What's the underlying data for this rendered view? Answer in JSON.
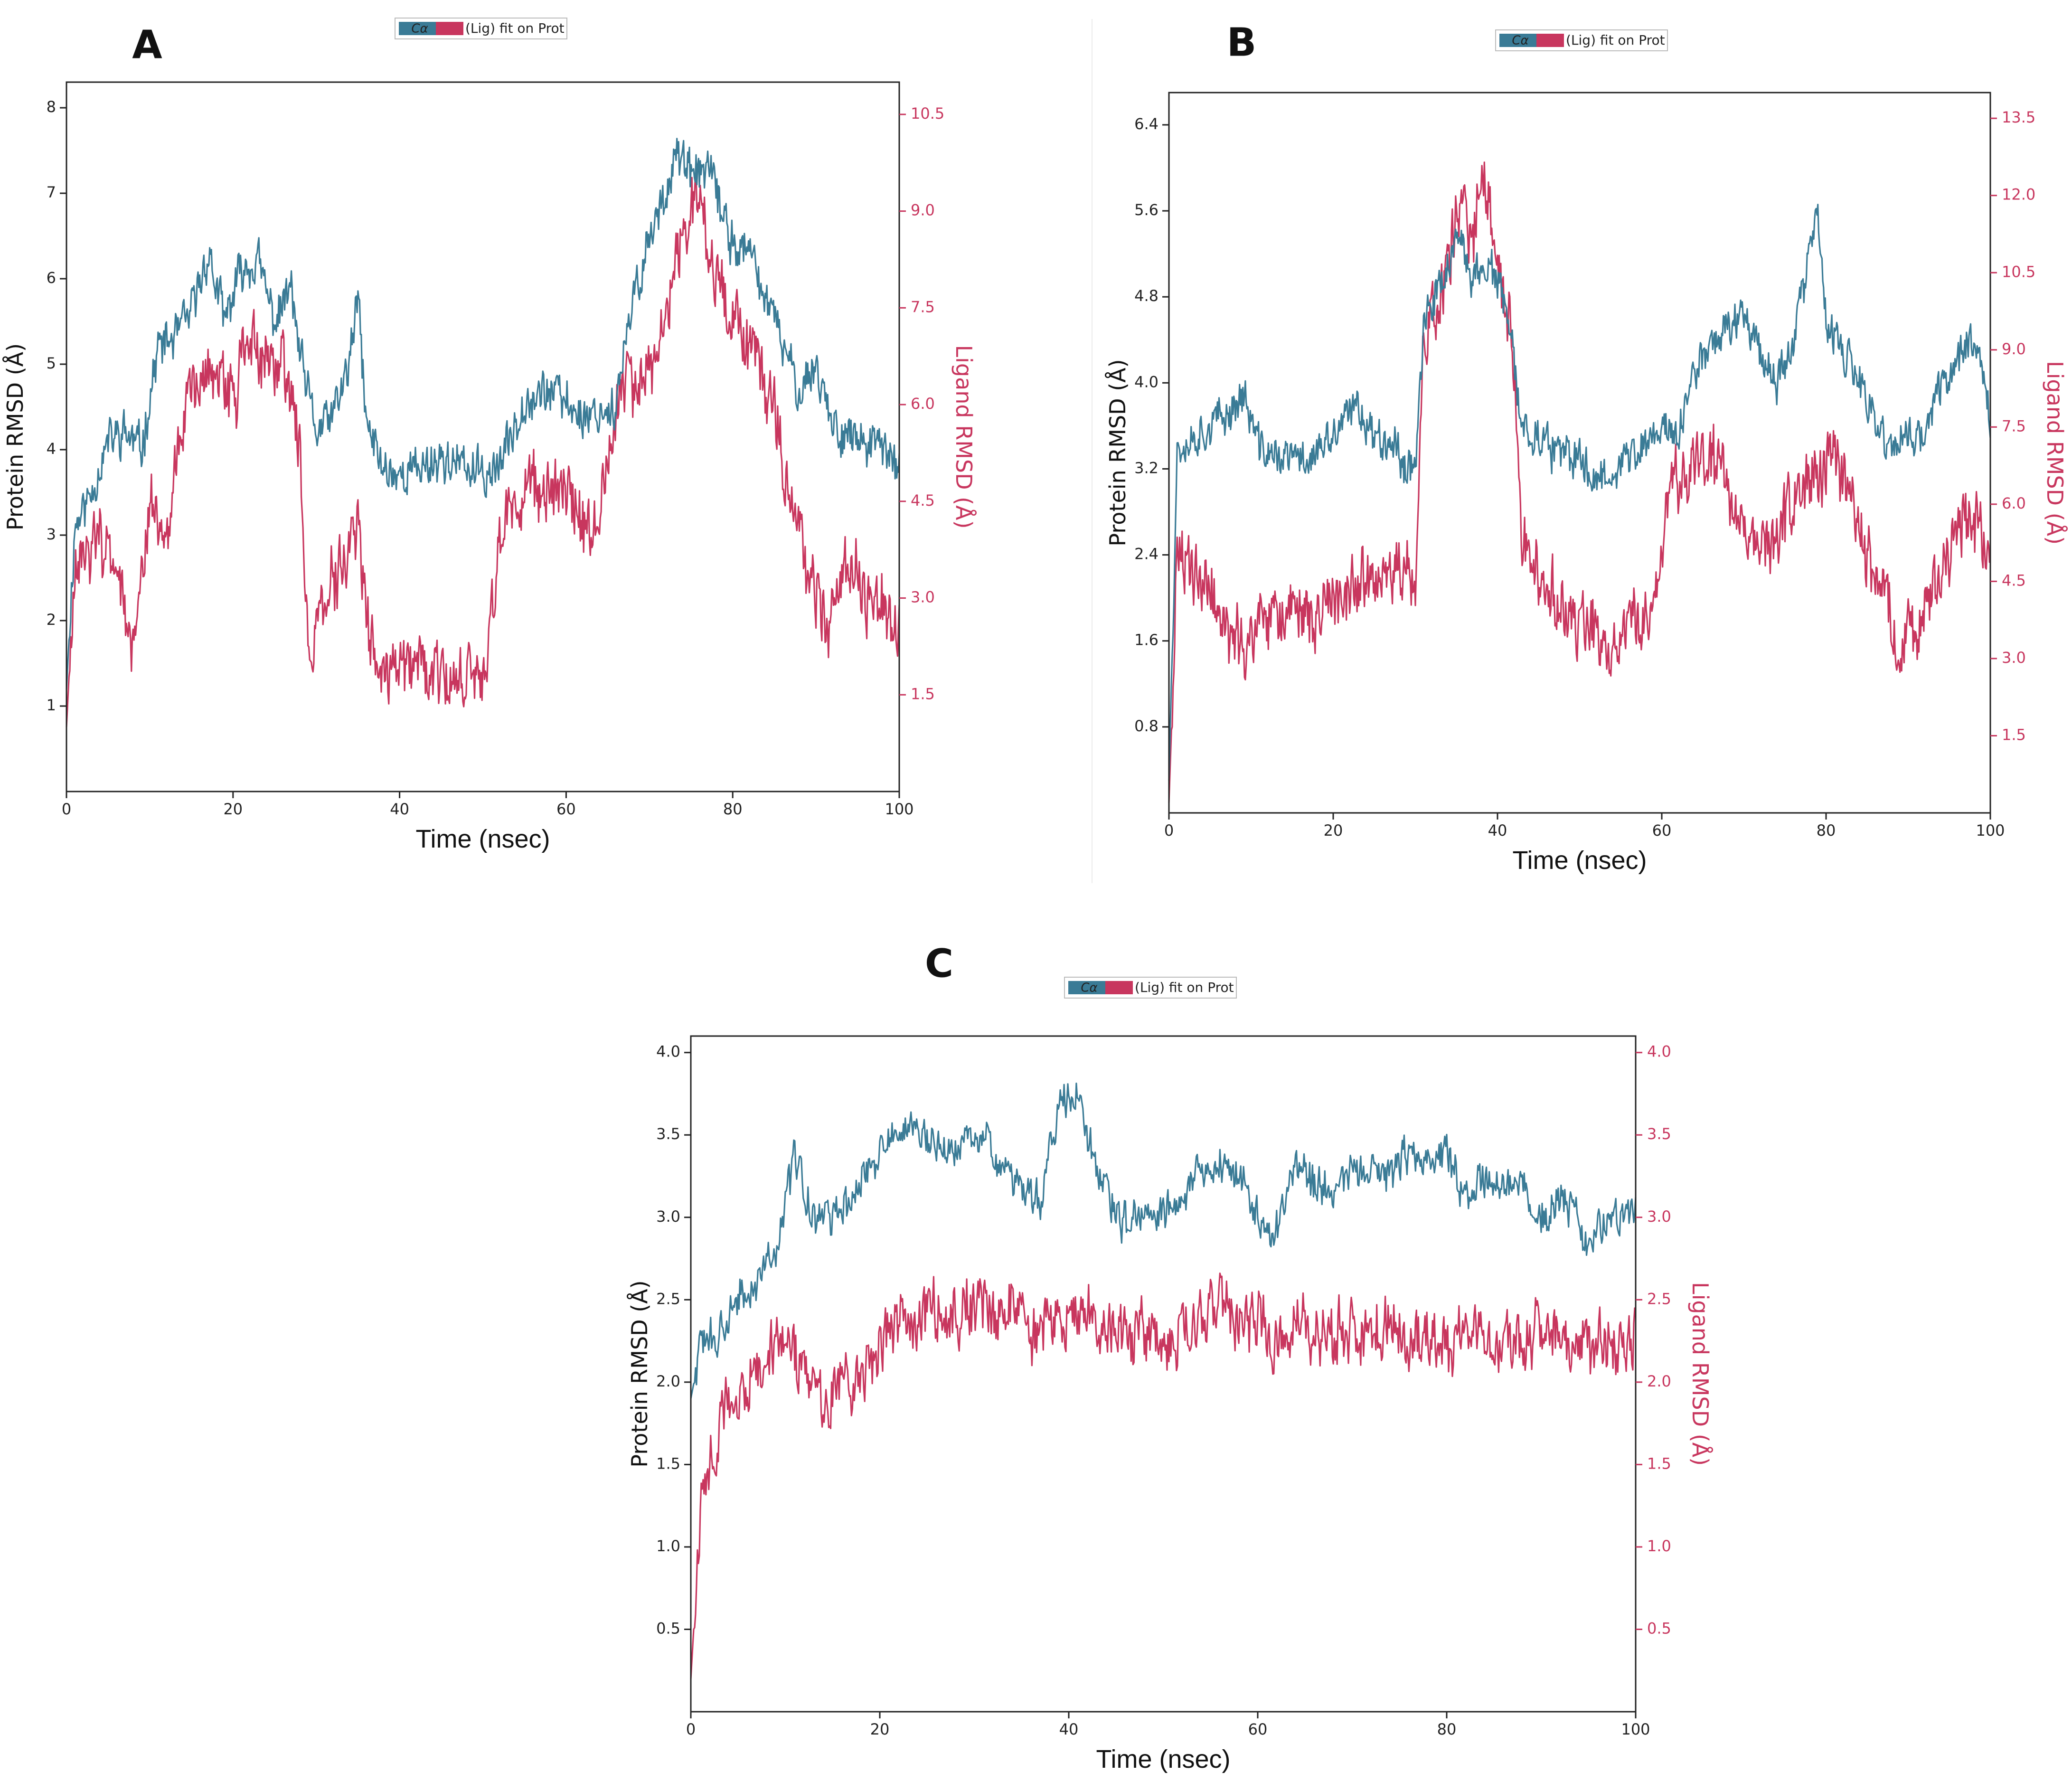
{
  "figure": {
    "background": "#ffffff",
    "protein_color": "#3a7b96",
    "ligand_color": "#c8365e"
  },
  "chart_data": [
    {
      "panel": "A",
      "type": "line",
      "legend": {
        "entries": [
          "Cα",
          "(Lig) fit on Prot"
        ],
        "text": "(Lig) fit on Prot",
        "ca_label": "Cα",
        "placement": "top-center"
      },
      "xlabel": "Time (nsec)",
      "ylabel": "Protein RMSD (Å)",
      "y2label": "Ligand RMSD (Å)",
      "xlim": [
        0,
        100
      ],
      "ylim": [
        0,
        8.3
      ],
      "y2lim": [
        0,
        11.0
      ],
      "xticks": [
        "0",
        "20",
        "40",
        "60",
        "80",
        "100"
      ],
      "yticks": [
        "1",
        "2",
        "3",
        "4",
        "5",
        "6",
        "7",
        "8"
      ],
      "y2ticks": [
        "1.5",
        "3.0",
        "4.5",
        "6.0",
        "7.5",
        "9.0",
        "10.5"
      ],
      "series": [
        {
          "name": "Protein RMSD",
          "axis": "left",
          "color": "#3a7b96",
          "x": [
            0,
            1,
            3,
            5,
            7,
            9,
            10,
            11,
            13,
            15,
            17,
            19,
            21,
            23,
            25,
            27,
            28,
            30,
            32,
            34,
            35,
            36,
            38,
            40,
            45,
            50,
            52,
            55,
            58,
            62,
            66,
            68,
            70,
            72,
            73,
            75,
            77,
            80,
            82,
            85,
            88,
            90,
            92,
            95,
            98,
            100
          ],
          "y": [
            1.2,
            3.1,
            3.5,
            4.1,
            4.2,
            4.0,
            4.6,
            5.2,
            5.3,
            5.6,
            6.3,
            5.5,
            6.1,
            6.2,
            5.5,
            5.9,
            5.1,
            4.2,
            4.4,
            5.0,
            5.8,
            4.3,
            3.8,
            3.7,
            3.9,
            3.7,
            3.8,
            4.6,
            4.7,
            4.4,
            4.5,
            5.7,
            6.5,
            7.0,
            7.5,
            7.2,
            7.3,
            6.4,
            6.3,
            5.5,
            4.7,
            5.0,
            4.3,
            4.1,
            4.0,
            3.8
          ]
        },
        {
          "name": "Ligand RMSD",
          "axis": "right",
          "color": "#c8365e",
          "x": [
            0,
            1,
            3,
            5,
            7,
            8,
            10,
            12,
            14,
            16,
            18,
            20,
            22,
            24,
            26,
            28,
            29,
            31,
            33,
            35,
            36,
            38,
            40,
            45,
            50,
            52,
            55,
            58,
            61,
            63,
            65,
            67,
            70,
            72,
            74,
            76,
            78,
            80,
            82,
            85,
            88,
            90,
            92,
            94,
            96,
            98,
            100
          ],
          "y": [
            1.0,
            3.6,
            3.7,
            3.9,
            3.0,
            2.3,
            4.5,
            4.1,
            5.9,
            6.3,
            6.8,
            6.0,
            7.0,
            6.5,
            6.6,
            5.5,
            2.0,
            3.2,
            3.4,
            4.0,
            2.7,
            1.6,
            1.9,
            1.8,
            1.6,
            4.0,
            4.6,
            4.7,
            4.5,
            3.9,
            5.3,
            6.3,
            6.4,
            7.5,
            8.6,
            9.3,
            8.0,
            7.5,
            6.9,
            6.0,
            3.8,
            3.1,
            2.5,
            3.7,
            3.0,
            2.9,
            2.6
          ]
        }
      ]
    },
    {
      "panel": "B",
      "type": "line",
      "legend": {
        "entries": [
          "Cα",
          "(Lig) fit on Prot"
        ],
        "text": "(Lig) fit on Prot",
        "ca_label": "Cα",
        "placement": "top-center"
      },
      "xlabel": "Time (nsec)",
      "ylabel": "Protein RMSD (Å)",
      "y2label": "Ligand RMSD (Å)",
      "xlim": [
        0,
        100
      ],
      "ylim": [
        0,
        6.7
      ],
      "y2lim": [
        0,
        14.0
      ],
      "xticks": [
        "0",
        "20",
        "40",
        "60",
        "80",
        "100"
      ],
      "yticks": [
        "0.8",
        "1.6",
        "2.4",
        "3.2",
        "4.0",
        "4.8",
        "5.6",
        "6.4"
      ],
      "y2ticks": [
        "1.5",
        "3.0",
        "4.5",
        "6.0",
        "7.5",
        "9.0",
        "10.5",
        "12.0",
        "13.5"
      ],
      "series": [
        {
          "name": "Protein RMSD",
          "axis": "left",
          "color": "#3a7b96",
          "x": [
            0,
            1,
            3,
            5,
            7,
            9,
            11,
            13,
            15,
            17,
            19,
            21,
            23,
            25,
            27,
            29,
            30,
            31,
            33,
            35,
            37,
            39,
            41,
            43,
            45,
            48,
            50,
            52,
            54,
            56,
            58,
            60,
            62,
            64,
            66,
            68,
            70,
            72,
            74,
            76,
            78,
            79,
            80,
            82,
            84,
            86,
            88,
            90,
            92,
            94,
            96,
            98,
            100
          ],
          "y": [
            0.3,
            3.4,
            3.5,
            3.6,
            3.7,
            3.9,
            3.4,
            3.3,
            3.3,
            3.3,
            3.4,
            3.6,
            3.8,
            3.5,
            3.5,
            3.2,
            3.3,
            4.5,
            4.9,
            5.3,
            5.0,
            5.1,
            4.7,
            3.6,
            3.5,
            3.3,
            3.3,
            3.1,
            3.2,
            3.3,
            3.4,
            3.6,
            3.5,
            4.1,
            4.4,
            4.5,
            4.7,
            4.3,
            4.0,
            4.4,
            5.2,
            5.6,
            4.5,
            4.3,
            4.0,
            3.6,
            3.4,
            3.5,
            3.5,
            4.0,
            4.2,
            4.5,
            3.7
          ]
        },
        {
          "name": "Ligand RMSD",
          "axis": "right",
          "color": "#c8365e",
          "x": [
            0,
            1,
            3,
            5,
            7,
            9,
            11,
            13,
            15,
            17,
            19,
            21,
            23,
            25,
            27,
            29,
            30,
            31,
            33,
            35,
            36,
            37,
            38,
            40,
            42,
            43,
            45,
            47,
            49,
            51,
            53,
            55,
            57,
            59,
            61,
            63,
            65,
            67,
            69,
            71,
            73,
            75,
            77,
            79,
            81,
            83,
            85,
            87,
            89,
            91,
            93,
            95,
            97,
            99,
            100
          ],
          "y": [
            0.2,
            4.9,
            4.7,
            4.4,
            3.4,
            3.2,
            3.7,
            3.7,
            3.9,
            3.8,
            4.0,
            4.2,
            4.5,
            4.3,
            4.6,
            4.7,
            4.2,
            9.3,
            9.8,
            11.5,
            11.8,
            10.8,
            12.7,
            11.0,
            8.7,
            5.4,
            4.5,
            4.3,
            3.5,
            3.8,
            3.1,
            3.4,
            3.7,
            4.0,
            6.4,
            6.5,
            6.8,
            6.8,
            5.8,
            5.2,
            5.0,
            5.8,
            6.5,
            6.5,
            6.8,
            6.0,
            5.0,
            4.2,
            3.4,
            3.5,
            4.2,
            5.1,
            5.8,
            5.5,
            4.5
          ]
        }
      ]
    },
    {
      "panel": "C",
      "type": "line",
      "legend": {
        "entries": [
          "Cα",
          "(Lig) fit on Prot"
        ],
        "text": "(Lig) fit on Prot",
        "ca_label": "Cα",
        "placement": "top-center"
      },
      "xlabel": "Time (nsec)",
      "ylabel": "Protein RMSD (Å)",
      "y2label": "Ligand RMSD (Å)",
      "xlim": [
        0,
        100
      ],
      "ylim": [
        0,
        4.1
      ],
      "y2lim": [
        0,
        4.1
      ],
      "xticks": [
        "0",
        "20",
        "40",
        "60",
        "80",
        "100"
      ],
      "yticks": [
        "0.5",
        "1.0",
        "1.5",
        "2.0",
        "2.5",
        "3.0",
        "3.5",
        "4.0"
      ],
      "y2ticks": [
        "0.5",
        "1.0",
        "1.5",
        "2.0",
        "2.5",
        "3.0",
        "3.5",
        "4.0"
      ],
      "series": [
        {
          "name": "Protein RMSD",
          "axis": "left",
          "color": "#3a7b96",
          "x": [
            0,
            1,
            3,
            5,
            7,
            9,
            11,
            13,
            15,
            17,
            19,
            21,
            23,
            25,
            27,
            29,
            31,
            33,
            35,
            37,
            39,
            41,
            43,
            45,
            47,
            50,
            53,
            56,
            58,
            60,
            62,
            64,
            66,
            68,
            70,
            72,
            74,
            76,
            78,
            80,
            82,
            84,
            86,
            88,
            90,
            92,
            94,
            95,
            96,
            98,
            100
          ],
          "y": [
            1.9,
            2.2,
            2.3,
            2.5,
            2.6,
            2.8,
            3.35,
            3.0,
            3.0,
            3.1,
            3.3,
            3.5,
            3.55,
            3.45,
            3.4,
            3.45,
            3.5,
            3.3,
            3.2,
            3.1,
            3.7,
            3.75,
            3.3,
            3.0,
            3.0,
            3.05,
            3.2,
            3.35,
            3.25,
            3.0,
            2.9,
            3.3,
            3.2,
            3.2,
            3.3,
            3.3,
            3.25,
            3.4,
            3.35,
            3.4,
            3.1,
            3.2,
            3.2,
            3.2,
            3.0,
            3.1,
            3.0,
            2.8,
            2.95,
            3.0,
            3.05
          ]
        },
        {
          "name": "Ligand RMSD",
          "axis": "right",
          "color": "#c8365e",
          "x": [
            0,
            1,
            2,
            4,
            6,
            8,
            10,
            12,
            14,
            16,
            18,
            20,
            22,
            24,
            26,
            28,
            30,
            32,
            34,
            36,
            38,
            40,
            42,
            44,
            46,
            48,
            50,
            52,
            54,
            56,
            58,
            60,
            62,
            64,
            66,
            68,
            70,
            72,
            74,
            76,
            78,
            80,
            82,
            84,
            86,
            88,
            90,
            92,
            94,
            96,
            98,
            100
          ],
          "y": [
            0.2,
            1.2,
            1.5,
            1.9,
            2.0,
            2.1,
            2.3,
            2.1,
            1.85,
            2.0,
            2.0,
            2.2,
            2.4,
            2.3,
            2.5,
            2.4,
            2.5,
            2.4,
            2.5,
            2.3,
            2.4,
            2.4,
            2.5,
            2.3,
            2.3,
            2.3,
            2.2,
            2.3,
            2.4,
            2.5,
            2.3,
            2.4,
            2.2,
            2.35,
            2.3,
            2.3,
            2.3,
            2.3,
            2.4,
            2.25,
            2.3,
            2.2,
            2.3,
            2.3,
            2.25,
            2.3,
            2.3,
            2.3,
            2.2,
            2.25,
            2.2,
            2.25
          ]
        }
      ]
    }
  ]
}
